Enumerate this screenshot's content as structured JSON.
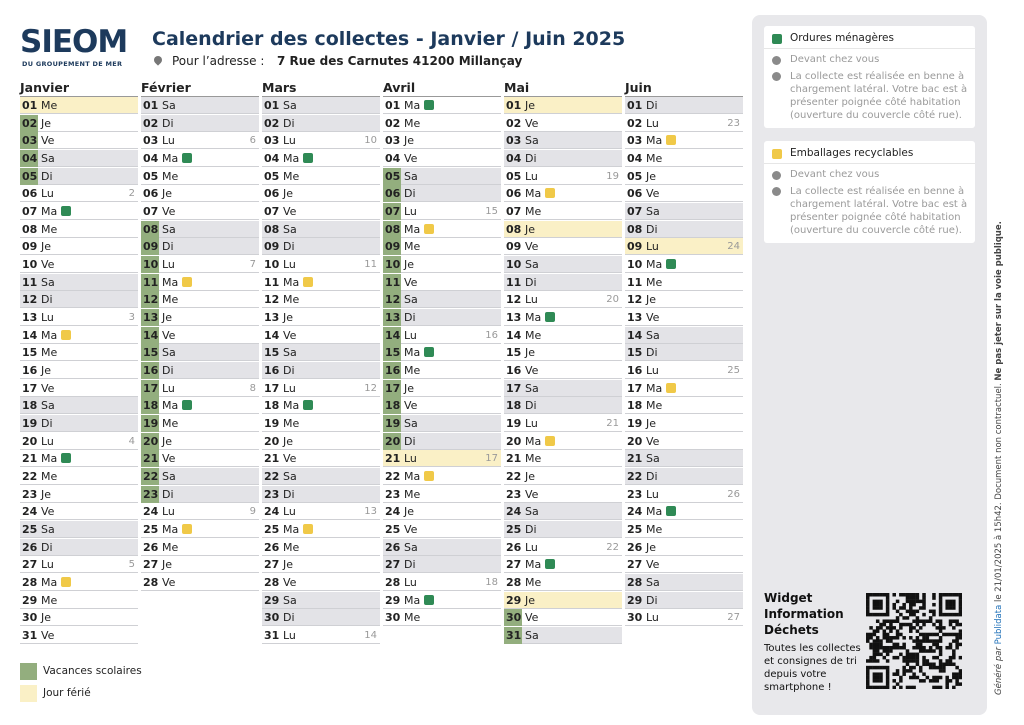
{
  "header": {
    "logo": "SIEOM",
    "logo_sub": "DU GROUPEMENT DE MER",
    "title": "Calendrier des collectes - Janvier / Juin 2025",
    "address_label": "Pour l’adresse :",
    "address": "7 Rue des Carnutes 41200 Millançay"
  },
  "months": [
    {
      "name": "Janvier",
      "days": [
        {
          "n": "01",
          "d": "Me",
          "f": "h"
        },
        {
          "n": "02",
          "d": "Je",
          "f": "v"
        },
        {
          "n": "03",
          "d": "Ve",
          "f": "v"
        },
        {
          "n": "04",
          "d": "Sa",
          "f": "v"
        },
        {
          "n": "05",
          "d": "Di",
          "f": "v"
        },
        {
          "n": "06",
          "d": "Lu",
          "wk": 2
        },
        {
          "n": "07",
          "d": "Ma",
          "bin": "om"
        },
        {
          "n": "08",
          "d": "Me"
        },
        {
          "n": "09",
          "d": "Je"
        },
        {
          "n": "10",
          "d": "Ve"
        },
        {
          "n": "11",
          "d": "Sa"
        },
        {
          "n": "12",
          "d": "Di"
        },
        {
          "n": "13",
          "d": "Lu",
          "wk": 3
        },
        {
          "n": "14",
          "d": "Ma",
          "bin": "er"
        },
        {
          "n": "15",
          "d": "Me"
        },
        {
          "n": "16",
          "d": "Je"
        },
        {
          "n": "17",
          "d": "Ve"
        },
        {
          "n": "18",
          "d": "Sa"
        },
        {
          "n": "19",
          "d": "Di"
        },
        {
          "n": "20",
          "d": "Lu",
          "wk": 4
        },
        {
          "n": "21",
          "d": "Ma",
          "bin": "om"
        },
        {
          "n": "22",
          "d": "Me"
        },
        {
          "n": "23",
          "d": "Je"
        },
        {
          "n": "24",
          "d": "Ve"
        },
        {
          "n": "25",
          "d": "Sa"
        },
        {
          "n": "26",
          "d": "Di"
        },
        {
          "n": "27",
          "d": "Lu",
          "wk": 5
        },
        {
          "n": "28",
          "d": "Ma",
          "bin": "er"
        },
        {
          "n": "29",
          "d": "Me"
        },
        {
          "n": "30",
          "d": "Je"
        },
        {
          "n": "31",
          "d": "Ve"
        }
      ]
    },
    {
      "name": "Février",
      "days": [
        {
          "n": "01",
          "d": "Sa"
        },
        {
          "n": "02",
          "d": "Di"
        },
        {
          "n": "03",
          "d": "Lu",
          "wk": 6
        },
        {
          "n": "04",
          "d": "Ma",
          "bin": "om"
        },
        {
          "n": "05",
          "d": "Me"
        },
        {
          "n": "06",
          "d": "Je"
        },
        {
          "n": "07",
          "d": "Ve"
        },
        {
          "n": "08",
          "d": "Sa",
          "f": "v"
        },
        {
          "n": "09",
          "d": "Di",
          "f": "v"
        },
        {
          "n": "10",
          "d": "Lu",
          "wk": 7,
          "f": "v"
        },
        {
          "n": "11",
          "d": "Ma",
          "bin": "er",
          "f": "v"
        },
        {
          "n": "12",
          "d": "Me",
          "f": "v"
        },
        {
          "n": "13",
          "d": "Je",
          "f": "v"
        },
        {
          "n": "14",
          "d": "Ve",
          "f": "v"
        },
        {
          "n": "15",
          "d": "Sa",
          "f": "v"
        },
        {
          "n": "16",
          "d": "Di",
          "f": "v"
        },
        {
          "n": "17",
          "d": "Lu",
          "wk": 8,
          "f": "v"
        },
        {
          "n": "18",
          "d": "Ma",
          "bin": "om",
          "f": "v"
        },
        {
          "n": "19",
          "d": "Me",
          "f": "v"
        },
        {
          "n": "20",
          "d": "Je",
          "f": "v"
        },
        {
          "n": "21",
          "d": "Ve",
          "f": "v"
        },
        {
          "n": "22",
          "d": "Sa",
          "f": "v"
        },
        {
          "n": "23",
          "d": "Di",
          "f": "v"
        },
        {
          "n": "24",
          "d": "Lu",
          "wk": 9
        },
        {
          "n": "25",
          "d": "Ma",
          "bin": "er"
        },
        {
          "n": "26",
          "d": "Me"
        },
        {
          "n": "27",
          "d": "Je"
        },
        {
          "n": "28",
          "d": "Ve"
        }
      ]
    },
    {
      "name": "Mars",
      "days": [
        {
          "n": "01",
          "d": "Sa"
        },
        {
          "n": "02",
          "d": "Di"
        },
        {
          "n": "03",
          "d": "Lu",
          "wk": 10
        },
        {
          "n": "04",
          "d": "Ma",
          "bin": "om"
        },
        {
          "n": "05",
          "d": "Me"
        },
        {
          "n": "06",
          "d": "Je"
        },
        {
          "n": "07",
          "d": "Ve"
        },
        {
          "n": "08",
          "d": "Sa"
        },
        {
          "n": "09",
          "d": "Di"
        },
        {
          "n": "10",
          "d": "Lu",
          "wk": 11
        },
        {
          "n": "11",
          "d": "Ma",
          "bin": "er"
        },
        {
          "n": "12",
          "d": "Me"
        },
        {
          "n": "13",
          "d": "Je"
        },
        {
          "n": "14",
          "d": "Ve"
        },
        {
          "n": "15",
          "d": "Sa"
        },
        {
          "n": "16",
          "d": "Di"
        },
        {
          "n": "17",
          "d": "Lu",
          "wk": 12
        },
        {
          "n": "18",
          "d": "Ma",
          "bin": "om"
        },
        {
          "n": "19",
          "d": "Me"
        },
        {
          "n": "20",
          "d": "Je"
        },
        {
          "n": "21",
          "d": "Ve"
        },
        {
          "n": "22",
          "d": "Sa"
        },
        {
          "n": "23",
          "d": "Di"
        },
        {
          "n": "24",
          "d": "Lu",
          "wk": 13
        },
        {
          "n": "25",
          "d": "Ma",
          "bin": "er"
        },
        {
          "n": "26",
          "d": "Me"
        },
        {
          "n": "27",
          "d": "Je"
        },
        {
          "n": "28",
          "d": "Ve"
        },
        {
          "n": "29",
          "d": "Sa"
        },
        {
          "n": "30",
          "d": "Di"
        },
        {
          "n": "31",
          "d": "Lu",
          "wk": 14
        }
      ]
    },
    {
      "name": "Avril",
      "days": [
        {
          "n": "01",
          "d": "Ma",
          "bin": "om"
        },
        {
          "n": "02",
          "d": "Me"
        },
        {
          "n": "03",
          "d": "Je"
        },
        {
          "n": "04",
          "d": "Ve"
        },
        {
          "n": "05",
          "d": "Sa",
          "f": "v"
        },
        {
          "n": "06",
          "d": "Di",
          "f": "v"
        },
        {
          "n": "07",
          "d": "Lu",
          "wk": 15,
          "f": "v"
        },
        {
          "n": "08",
          "d": "Ma",
          "bin": "er",
          "f": "v"
        },
        {
          "n": "09",
          "d": "Me",
          "f": "v"
        },
        {
          "n": "10",
          "d": "Je",
          "f": "v"
        },
        {
          "n": "11",
          "d": "Ve",
          "f": "v"
        },
        {
          "n": "12",
          "d": "Sa",
          "f": "v"
        },
        {
          "n": "13",
          "d": "Di",
          "f": "v"
        },
        {
          "n": "14",
          "d": "Lu",
          "wk": 16,
          "f": "v"
        },
        {
          "n": "15",
          "d": "Ma",
          "bin": "om",
          "f": "v"
        },
        {
          "n": "16",
          "d": "Me",
          "f": "v"
        },
        {
          "n": "17",
          "d": "Je",
          "f": "v"
        },
        {
          "n": "18",
          "d": "Ve",
          "f": "v"
        },
        {
          "n": "19",
          "d": "Sa",
          "f": "v"
        },
        {
          "n": "20",
          "d": "Di",
          "f": "v"
        },
        {
          "n": "21",
          "d": "Lu",
          "wk": 17,
          "f": "h"
        },
        {
          "n": "22",
          "d": "Ma",
          "bin": "er"
        },
        {
          "n": "23",
          "d": "Me"
        },
        {
          "n": "24",
          "d": "Je"
        },
        {
          "n": "25",
          "d": "Ve"
        },
        {
          "n": "26",
          "d": "Sa"
        },
        {
          "n": "27",
          "d": "Di"
        },
        {
          "n": "28",
          "d": "Lu",
          "wk": 18
        },
        {
          "n": "29",
          "d": "Ma",
          "bin": "om"
        },
        {
          "n": "30",
          "d": "Me"
        }
      ]
    },
    {
      "name": "Mai",
      "days": [
        {
          "n": "01",
          "d": "Je",
          "f": "h"
        },
        {
          "n": "02",
          "d": "Ve"
        },
        {
          "n": "03",
          "d": "Sa"
        },
        {
          "n": "04",
          "d": "Di"
        },
        {
          "n": "05",
          "d": "Lu",
          "wk": 19
        },
        {
          "n": "06",
          "d": "Ma",
          "bin": "er"
        },
        {
          "n": "07",
          "d": "Me"
        },
        {
          "n": "08",
          "d": "Je",
          "f": "h"
        },
        {
          "n": "09",
          "d": "Ve"
        },
        {
          "n": "10",
          "d": "Sa"
        },
        {
          "n": "11",
          "d": "Di"
        },
        {
          "n": "12",
          "d": "Lu",
          "wk": 20
        },
        {
          "n": "13",
          "d": "Ma",
          "bin": "om"
        },
        {
          "n": "14",
          "d": "Me"
        },
        {
          "n": "15",
          "d": "Je"
        },
        {
          "n": "16",
          "d": "Ve"
        },
        {
          "n": "17",
          "d": "Sa"
        },
        {
          "n": "18",
          "d": "Di"
        },
        {
          "n": "19",
          "d": "Lu",
          "wk": 21
        },
        {
          "n": "20",
          "d": "Ma",
          "bin": "er"
        },
        {
          "n": "21",
          "d": "Me"
        },
        {
          "n": "22",
          "d": "Je"
        },
        {
          "n": "23",
          "d": "Ve"
        },
        {
          "n": "24",
          "d": "Sa"
        },
        {
          "n": "25",
          "d": "Di"
        },
        {
          "n": "26",
          "d": "Lu",
          "wk": 22
        },
        {
          "n": "27",
          "d": "Ma",
          "bin": "om"
        },
        {
          "n": "28",
          "d": "Me"
        },
        {
          "n": "29",
          "d": "Je",
          "f": "h"
        },
        {
          "n": "30",
          "d": "Ve",
          "f": "v"
        },
        {
          "n": "31",
          "d": "Sa",
          "f": "v"
        }
      ]
    },
    {
      "name": "Juin",
      "days": [
        {
          "n": "01",
          "d": "Di"
        },
        {
          "n": "02",
          "d": "Lu",
          "wk": 23
        },
        {
          "n": "03",
          "d": "Ma",
          "bin": "er"
        },
        {
          "n": "04",
          "d": "Me"
        },
        {
          "n": "05",
          "d": "Je"
        },
        {
          "n": "06",
          "d": "Ve"
        },
        {
          "n": "07",
          "d": "Sa"
        },
        {
          "n": "08",
          "d": "Di"
        },
        {
          "n": "09",
          "d": "Lu",
          "wk": 24,
          "f": "h"
        },
        {
          "n": "10",
          "d": "Ma",
          "bin": "om"
        },
        {
          "n": "11",
          "d": "Me"
        },
        {
          "n": "12",
          "d": "Je"
        },
        {
          "n": "13",
          "d": "Ve"
        },
        {
          "n": "14",
          "d": "Sa"
        },
        {
          "n": "15",
          "d": "Di"
        },
        {
          "n": "16",
          "d": "Lu",
          "wk": 25
        },
        {
          "n": "17",
          "d": "Ma",
          "bin": "er"
        },
        {
          "n": "18",
          "d": "Me"
        },
        {
          "n": "19",
          "d": "Je"
        },
        {
          "n": "20",
          "d": "Ve"
        },
        {
          "n": "21",
          "d": "Sa"
        },
        {
          "n": "22",
          "d": "Di"
        },
        {
          "n": "23",
          "d": "Lu",
          "wk": 26
        },
        {
          "n": "24",
          "d": "Ma",
          "bin": "om"
        },
        {
          "n": "25",
          "d": "Me"
        },
        {
          "n": "26",
          "d": "Je"
        },
        {
          "n": "27",
          "d": "Ve"
        },
        {
          "n": "28",
          "d": "Sa"
        },
        {
          "n": "29",
          "d": "Di"
        },
        {
          "n": "30",
          "d": "Lu",
          "wk": 27
        }
      ]
    }
  ],
  "legend": {
    "vacation": "Vacances scolaires",
    "holiday": "Jour férié"
  },
  "cards": [
    {
      "bin": "om",
      "title": "Ordures ménagères",
      "where": "Devant chez vous",
      "info": "La collecte est réalisée en benne à chargement latéral. Votre bac est à présenter poignée côté habitation (ouverture du couvercle côté rue)."
    },
    {
      "bin": "er",
      "title": "Emballages recyclables",
      "where": "Devant chez vous",
      "info": "La collecte est réalisée en benne à chargement latéral. Votre bac est à présenter poignée côté habitation (ouverture du couvercle côté rue)."
    }
  ],
  "widget": {
    "title": "Widget Information Déchets",
    "text": "Toutes les collectes et consignes de tri depuis votre smartphone !"
  },
  "footer": {
    "generated": "Généré par",
    "brand": "Publidata",
    "date": "le 21/01/2025 à 15h42. Document non contractuel.",
    "warning": "Ne pas jeter sur la voie publique."
  }
}
